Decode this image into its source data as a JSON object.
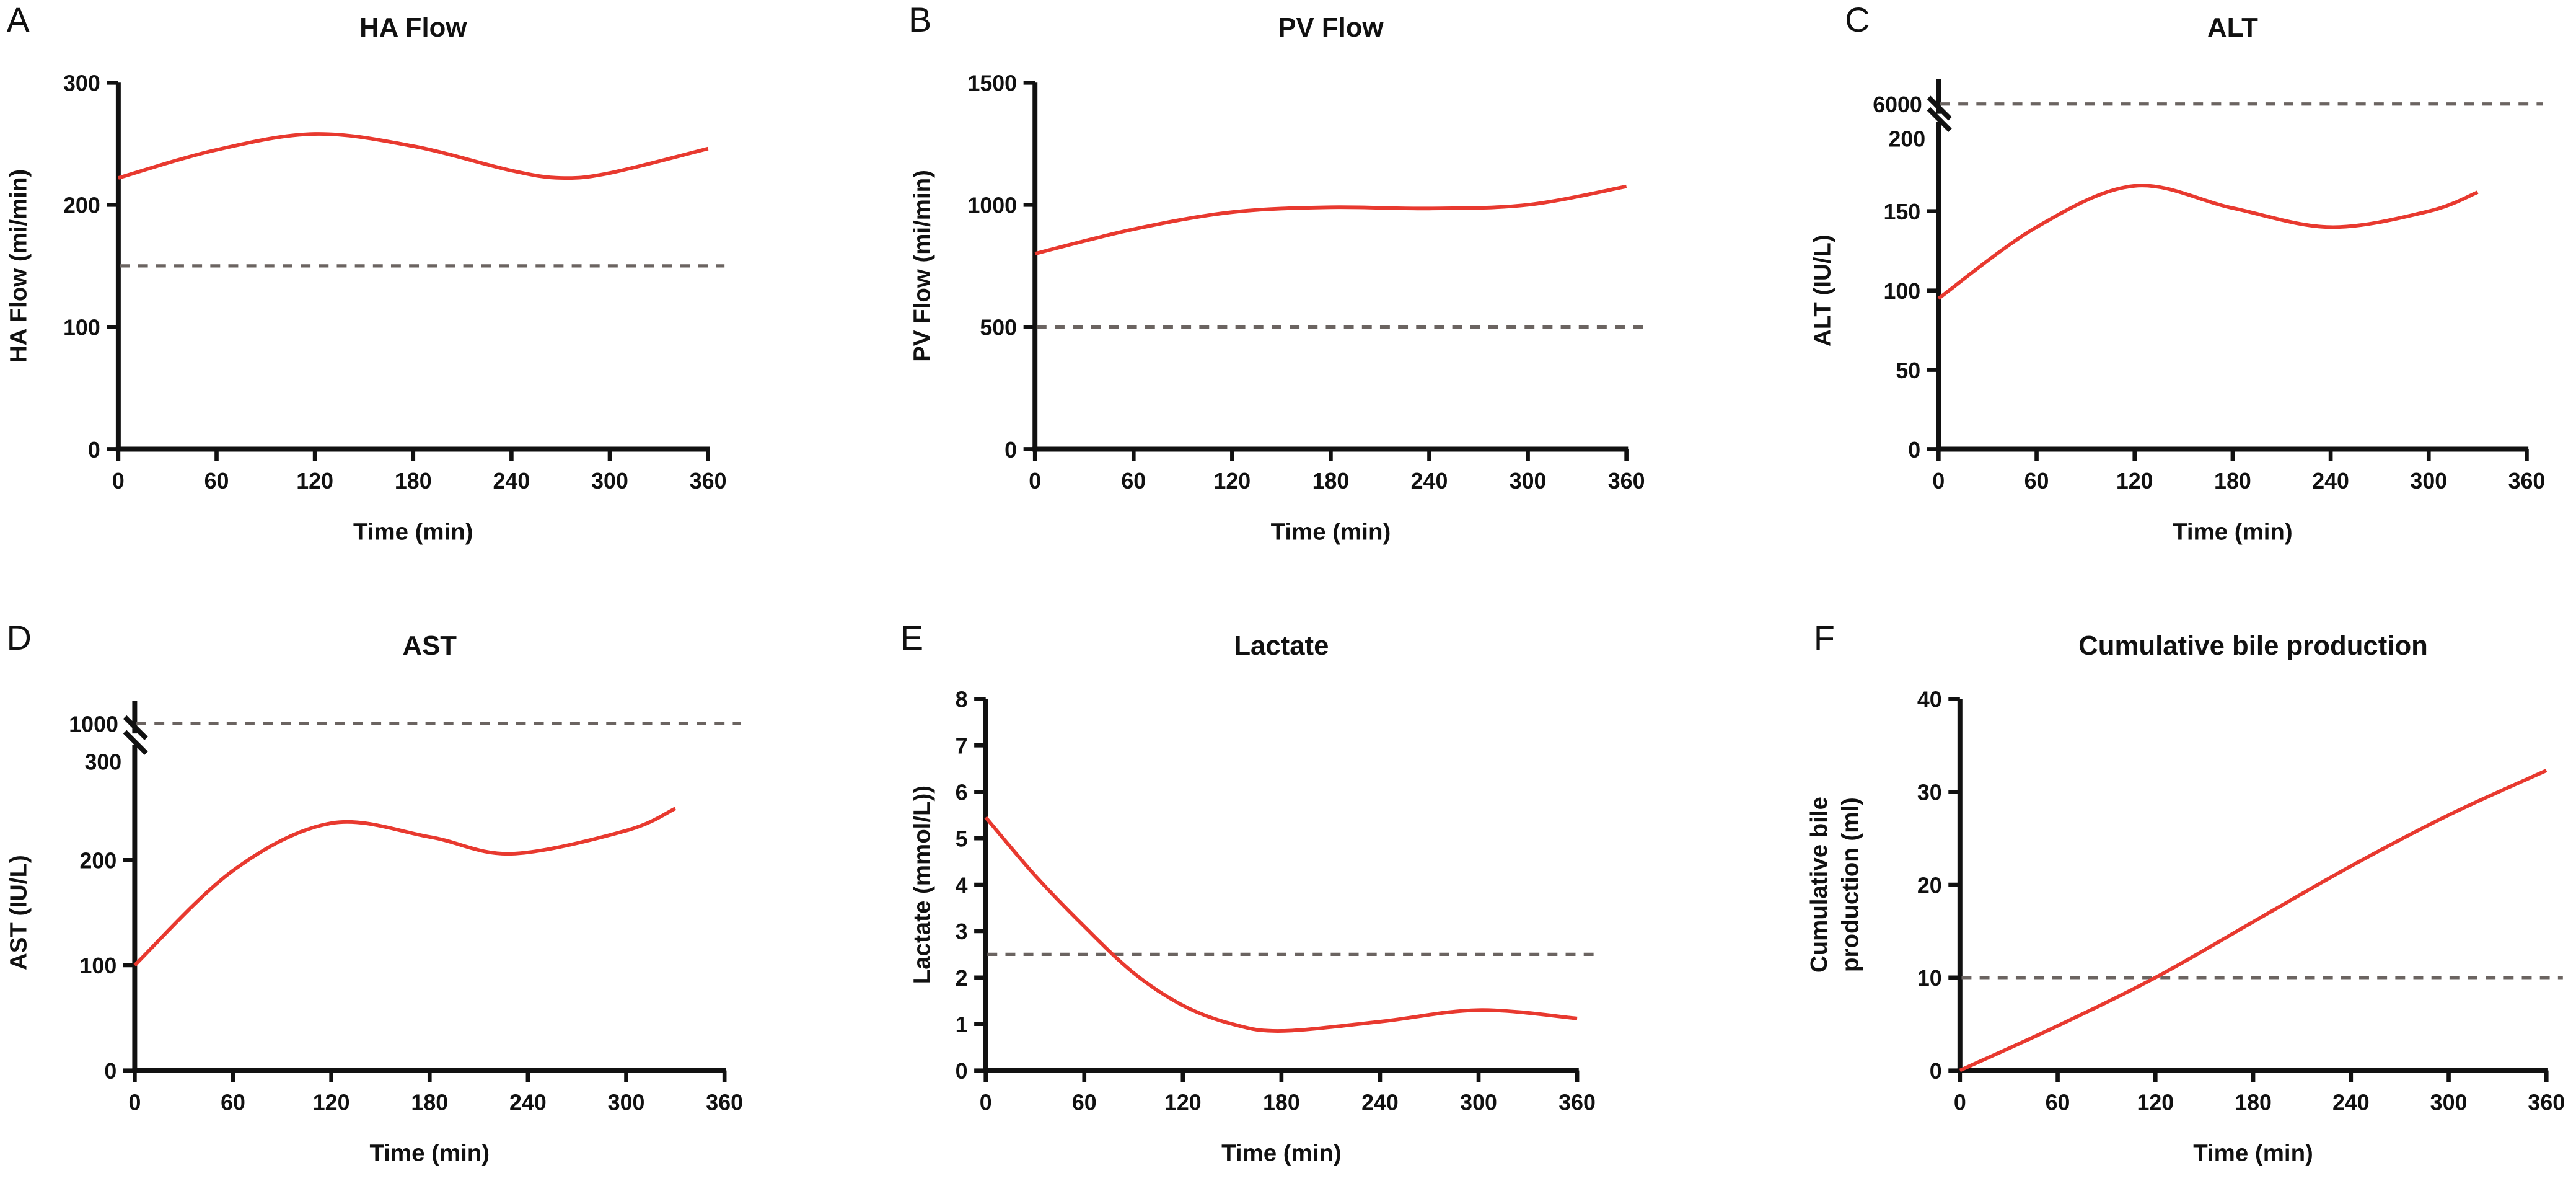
{
  "chart_data": [
    {
      "panel": "A",
      "type": "line",
      "title": "HA Flow",
      "xlabel": "Time (min)",
      "ylabel": "HA Flow (mi/min)",
      "xlim": [
        0,
        360
      ],
      "xticks": [
        0,
        60,
        120,
        180,
        240,
        300,
        360
      ],
      "ylim": [
        0,
        300
      ],
      "yticks": [
        0,
        100,
        200,
        300
      ],
      "series": [
        {
          "x": [
            0,
            60,
            120,
            180,
            240,
            270,
            300,
            360
          ],
          "y": [
            222,
            245,
            258,
            248,
            228,
            222,
            226,
            246
          ]
        }
      ],
      "reference_line": 150,
      "grid": false
    },
    {
      "panel": "B",
      "type": "line",
      "title": "PV Flow",
      "xlabel": "Time (min)",
      "ylabel": "PV Flow (mi/min)",
      "xlim": [
        0,
        360
      ],
      "xticks": [
        0,
        60,
        120,
        180,
        240,
        300,
        360
      ],
      "ylim": [
        0,
        1500
      ],
      "yticks": [
        0,
        500,
        1000,
        1500
      ],
      "series": [
        {
          "x": [
            0,
            60,
            120,
            180,
            240,
            300,
            360
          ],
          "y": [
            800,
            900,
            970,
            990,
            985,
            1000,
            1075
          ]
        }
      ],
      "reference_line": 500,
      "grid": false
    },
    {
      "panel": "C",
      "type": "line",
      "title": "ALT",
      "xlabel": "Time (min)",
      "ylabel": "ALT (IU/L)",
      "xlim": [
        0,
        360
      ],
      "xticks": [
        0,
        60,
        120,
        180,
        240,
        300,
        360
      ],
      "ylim": [
        0,
        200
      ],
      "yticks": [
        0,
        50,
        100,
        150,
        200
      ],
      "axis_break": {
        "upper_tick": 6000
      },
      "series": [
        {
          "x": [
            0,
            60,
            120,
            180,
            240,
            300,
            330
          ],
          "y": [
            95,
            140,
            166,
            152,
            140,
            150,
            162
          ]
        }
      ],
      "reference_line": 6000,
      "grid": false
    },
    {
      "panel": "D",
      "type": "line",
      "title": "AST",
      "xlabel": "Time (min)",
      "ylabel": "AST (IU/L)",
      "xlim": [
        0,
        360
      ],
      "xticks": [
        0,
        60,
        120,
        180,
        240,
        300,
        360
      ],
      "ylim": [
        0,
        300
      ],
      "yticks": [
        0,
        100,
        200,
        300
      ],
      "axis_break": {
        "upper_tick": 1000
      },
      "series": [
        {
          "x": [
            0,
            60,
            120,
            180,
            230,
            300,
            330
          ],
          "y": [
            100,
            190,
            235,
            222,
            206,
            228,
            249
          ]
        }
      ],
      "reference_line": 1000,
      "grid": false
    },
    {
      "panel": "E",
      "type": "line",
      "title": "Lactate",
      "xlabel": "Time (min)",
      "ylabel": "Lactate (mmol/L))",
      "xlim": [
        0,
        360
      ],
      "xticks": [
        0,
        60,
        120,
        180,
        240,
        300,
        360
      ],
      "ylim": [
        0,
        8
      ],
      "yticks": [
        0,
        1,
        2,
        3,
        4,
        5,
        6,
        7,
        8
      ],
      "series": [
        {
          "x": [
            0,
            30,
            60,
            90,
            120,
            150,
            180,
            240,
            300,
            360
          ],
          "y": [
            5.45,
            4.2,
            3.1,
            2.1,
            1.4,
            1.0,
            0.85,
            1.05,
            1.3,
            1.12
          ]
        }
      ],
      "reference_line": 2.5,
      "grid": false
    },
    {
      "panel": "F",
      "type": "line",
      "title": "Cumulative bile production",
      "xlabel": "Time (min)",
      "ylabel": [
        "Cumulative bile",
        "production (ml)"
      ],
      "xlim": [
        0,
        360
      ],
      "xticks": [
        0,
        60,
        120,
        180,
        240,
        300,
        360
      ],
      "ylim": [
        0,
        40
      ],
      "yticks": [
        0,
        10,
        20,
        30,
        40
      ],
      "series": [
        {
          "x": [
            0,
            60,
            120,
            180,
            240,
            300,
            360
          ],
          "y": [
            0,
            4.8,
            10,
            16,
            22,
            27.5,
            32.3
          ]
        }
      ],
      "reference_line": 10,
      "grid": false
    }
  ],
  "colors": {
    "series": "#e8392f",
    "reference_line": "#6b6461",
    "axis": "#111111"
  }
}
